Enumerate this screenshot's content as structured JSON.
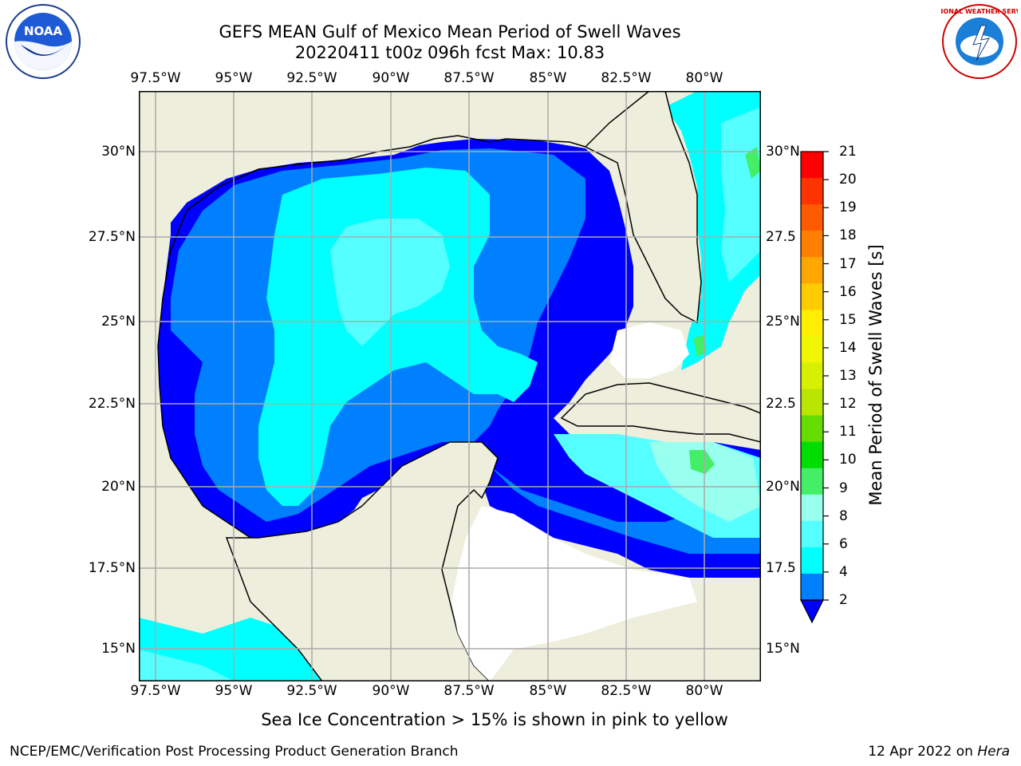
{
  "title": {
    "line1": "GEFS MEAN Gulf of Mexico Mean Period of Swell Waves",
    "line2": "20220411 t00z 096h fcst   Max: 10.83"
  },
  "map": {
    "lon_labels": [
      "97.5°W",
      "95°W",
      "92.5°W",
      "90°W",
      "87.5°W",
      "85°W",
      "82.5°W",
      "80°W"
    ],
    "lat_labels": [
      "30°N",
      "27.5°N",
      "25°N",
      "22.5°N",
      "20°N",
      "17.5°N",
      "15°N"
    ],
    "lat_labels_right": [
      "30°N",
      "27.5",
      "25°N",
      "22.5",
      "20°N",
      "17.5",
      "15°N"
    ]
  },
  "colorbar": {
    "title": "Mean Period of Swell Waves [s]",
    "tick_labels": [
      "21",
      "20",
      "19",
      "18",
      "17",
      "16",
      "15",
      "14",
      "13",
      "12",
      "11",
      "10",
      "9",
      "8",
      "6",
      "4",
      "2"
    ],
    "colors": [
      "#ff0000",
      "#ff3300",
      "#ff5a00",
      "#ff8000",
      "#ffa600",
      "#ffcc00",
      "#ffee00",
      "#f0f500",
      "#d6f000",
      "#b8e600",
      "#66dd00",
      "#00dd00",
      "#44ee66",
      "#99ffee",
      "#55ffff",
      "#00ffff",
      "#0080ff",
      "#0000ff"
    ]
  },
  "palette": {
    "land": "#eeeedd",
    "dark_blue": "#0000ff",
    "mid_blue": "#0080ff",
    "cyan": "#00ffff",
    "light_cyan": "#55ffff",
    "pale_cyan": "#99ffee",
    "green": "#44ee66"
  },
  "note": "Sea Ice Concentration > 15% is shown in pink to yellow",
  "footer": {
    "left": "NCEP/EMC/Verification Post Processing Product Generation Branch",
    "date": "12 Apr 2022 on ",
    "host": "Hera"
  },
  "logos": {
    "left": "noaa-logo",
    "left_text": "NOAA",
    "right": "nws-logo",
    "right_text": "NATIONAL WEATHER SERVICE"
  }
}
